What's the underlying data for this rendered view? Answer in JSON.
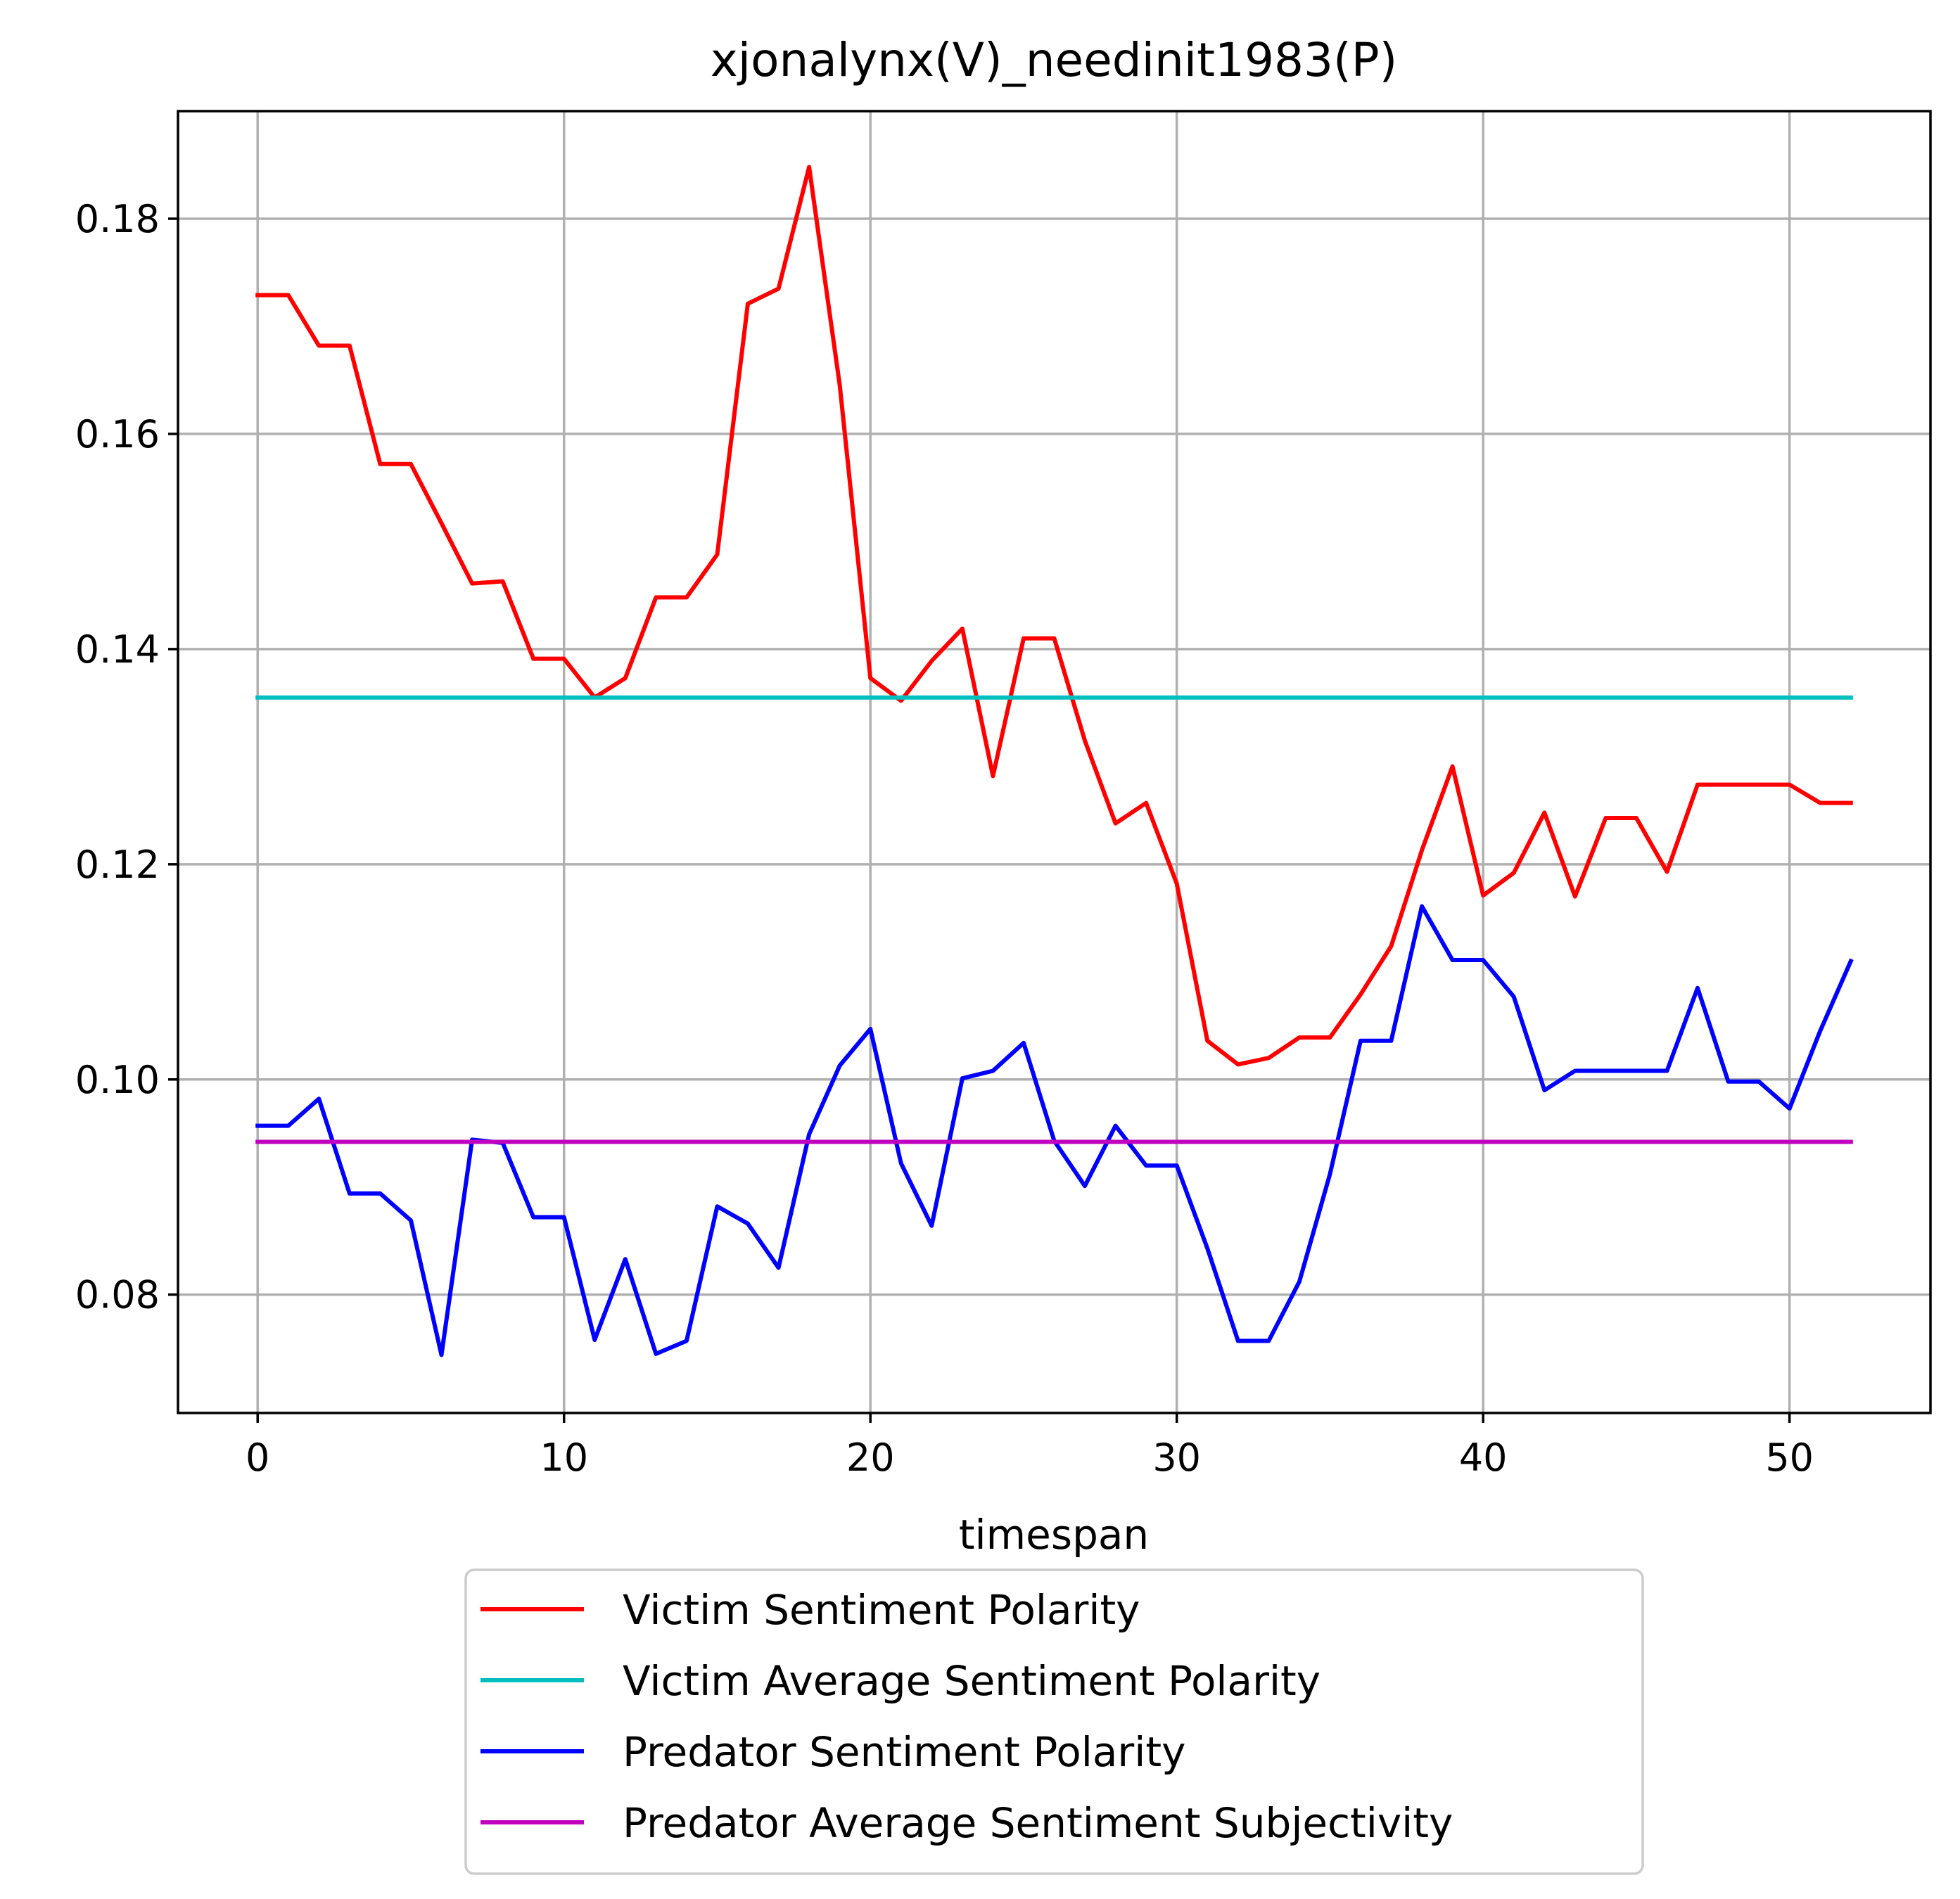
{
  "chart_data": {
    "type": "line",
    "title": "xjonalynx(V)_needinit1983(P)",
    "xlabel": "timespan",
    "ylabel": "",
    "xlim": [
      -2.6,
      54.6
    ],
    "ylim": [
      0.069,
      0.19
    ],
    "xticks": [
      0,
      10,
      20,
      30,
      40,
      50
    ],
    "yticks": [
      0.08,
      0.1,
      0.12,
      0.14,
      0.16,
      0.18
    ],
    "ytick_labels": [
      "0.08",
      "0.10",
      "0.12",
      "0.14",
      "0.16",
      "0.18"
    ],
    "grid": true,
    "legend_position": "below-center",
    "x": [
      0,
      1,
      2,
      3,
      4,
      5,
      6,
      7,
      8,
      9,
      10,
      11,
      12,
      13,
      14,
      15,
      16,
      17,
      18,
      19,
      20,
      21,
      22,
      23,
      24,
      25,
      26,
      27,
      28,
      29,
      30,
      31,
      32,
      33,
      34,
      35,
      36,
      37,
      38,
      39,
      40,
      41,
      42,
      43,
      44,
      45,
      46,
      47,
      48,
      49,
      50,
      51,
      52
    ],
    "series": [
      {
        "name": "Victim Sentiment Polarity",
        "color": "#ff0000",
        "values": [
          0.1729,
          0.1729,
          0.1682,
          0.1682,
          0.1572,
          0.1572,
          0.1517,
          0.1461,
          0.1463,
          0.1391,
          0.1391,
          0.1355,
          0.1373,
          0.1448,
          0.1448,
          0.1488,
          0.1721,
          0.1735,
          0.1848,
          0.1645,
          0.1373,
          0.1352,
          0.1389,
          0.1419,
          0.1282,
          0.141,
          0.141,
          0.1315,
          0.1238,
          0.1257,
          0.1182,
          0.1036,
          0.1014,
          0.102,
          0.1039,
          0.1039,
          0.1079,
          0.1124,
          0.1213,
          0.1291,
          0.1171,
          0.1192,
          0.1248,
          0.117,
          0.1243,
          0.1243,
          0.1193,
          0.1274,
          0.1274,
          0.1274,
          0.1274,
          0.1257,
          0.1257
        ]
      },
      {
        "name": "Victim Average Sentiment Polarity",
        "color": "#00bfbf",
        "values": [
          0.1355,
          0.1355,
          0.1355,
          0.1355,
          0.1355,
          0.1355,
          0.1355,
          0.1355,
          0.1355,
          0.1355,
          0.1355,
          0.1355,
          0.1355,
          0.1355,
          0.1355,
          0.1355,
          0.1355,
          0.1355,
          0.1355,
          0.1355,
          0.1355,
          0.1355,
          0.1355,
          0.1355,
          0.1355,
          0.1355,
          0.1355,
          0.1355,
          0.1355,
          0.1355,
          0.1355,
          0.1355,
          0.1355,
          0.1355,
          0.1355,
          0.1355,
          0.1355,
          0.1355,
          0.1355,
          0.1355,
          0.1355,
          0.1355,
          0.1355,
          0.1355,
          0.1355,
          0.1355,
          0.1355,
          0.1355,
          0.1355,
          0.1355,
          0.1355,
          0.1355,
          0.1355
        ]
      },
      {
        "name": "Predator Sentiment Polarity",
        "color": "#0000ff",
        "values": [
          0.0957,
          0.0957,
          0.0982,
          0.0894,
          0.0894,
          0.0869,
          0.0744,
          0.0944,
          0.0941,
          0.0872,
          0.0872,
          0.0758,
          0.0833,
          0.0745,
          0.0757,
          0.0882,
          0.0866,
          0.0825,
          0.0949,
          0.1013,
          0.1047,
          0.0922,
          0.0864,
          0.1001,
          0.1008,
          0.1034,
          0.0943,
          0.0901,
          0.0957,
          0.092,
          0.092,
          0.0843,
          0.0757,
          0.0757,
          0.0812,
          0.0912,
          0.1036,
          0.1036,
          0.1161,
          0.1111,
          0.1111,
          0.1077,
          0.099,
          0.1008,
          0.1008,
          0.1008,
          0.1008,
          0.1085,
          0.0998,
          0.0998,
          0.0973,
          0.1045,
          0.111
        ]
      },
      {
        "name": "Predator Average Sentiment Subjectivity",
        "color": "#bf00bf",
        "values": [
          0.0942,
          0.0942,
          0.0942,
          0.0942,
          0.0942,
          0.0942,
          0.0942,
          0.0942,
          0.0942,
          0.0942,
          0.0942,
          0.0942,
          0.0942,
          0.0942,
          0.0942,
          0.0942,
          0.0942,
          0.0942,
          0.0942,
          0.0942,
          0.0942,
          0.0942,
          0.0942,
          0.0942,
          0.0942,
          0.0942,
          0.0942,
          0.0942,
          0.0942,
          0.0942,
          0.0942,
          0.0942,
          0.0942,
          0.0942,
          0.0942,
          0.0942,
          0.0942,
          0.0942,
          0.0942,
          0.0942,
          0.0942,
          0.0942,
          0.0942,
          0.0942,
          0.0942,
          0.0942,
          0.0942,
          0.0942,
          0.0942,
          0.0942,
          0.0942,
          0.0942,
          0.0942
        ]
      }
    ]
  }
}
